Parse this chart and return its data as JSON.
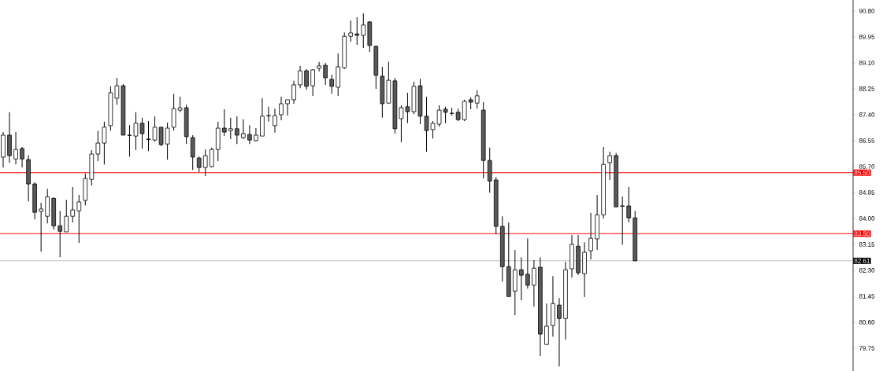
{
  "chart_data": {
    "type": "candlestick",
    "categories": [
      null,
      null,
      null,
      null,
      null,
      null,
      null,
      null,
      null,
      null,
      null,
      null,
      null,
      null,
      null,
      null,
      null,
      null,
      null,
      null,
      null,
      null,
      null,
      null,
      null,
      null,
      null,
      null,
      null,
      null,
      null,
      null,
      null,
      null,
      null,
      null,
      null,
      null,
      null,
      null,
      null,
      null,
      null,
      null,
      null,
      null,
      null,
      null,
      null,
      null,
      null,
      null,
      null,
      null,
      null,
      null,
      null,
      null,
      null,
      null,
      null,
      null,
      null,
      null,
      null,
      null,
      null,
      null,
      null,
      null,
      null,
      null,
      null,
      null,
      null,
      null,
      null,
      null,
      null,
      null,
      null,
      null,
      null,
      null,
      null,
      null,
      null,
      null,
      null,
      null,
      null,
      null,
      null,
      null,
      null,
      null,
      null,
      null,
      null,
      null,
      null,
      null,
      null,
      null,
      null,
      null,
      null,
      null,
      null,
      null,
      null,
      null,
      null,
      null,
      null,
      null,
      null,
      null,
      null,
      null,
      null,
      null,
      null,
      null,
      null,
      null,
      null,
      null,
      null,
      null,
      null,
      null,
      null,
      null,
      null
    ],
    "ohlc": [
      [
        86.01,
        86.83,
        85.67,
        86.73
      ],
      [
        86.73,
        87.48,
        85.83,
        86.06
      ],
      [
        85.95,
        86.83,
        85.77,
        86.26
      ],
      [
        86.29,
        86.34,
        85.67,
        85.95
      ],
      [
        85.93,
        86.08,
        84.56,
        85.13
      ],
      [
        85.13,
        85.18,
        83.97,
        84.2
      ],
      [
        84.23,
        84.51,
        82.91,
        84.31
      ],
      [
        84.07,
        84.97,
        83.84,
        84.71
      ],
      [
        84.66,
        84.69,
        83.63,
        83.76
      ],
      [
        83.76,
        84.25,
        82.73,
        83.58
      ],
      [
        83.56,
        84.61,
        83.56,
        84.07
      ],
      [
        84.07,
        85.03,
        83.87,
        84.28
      ],
      [
        84.25,
        84.77,
        83.2,
        84.54
      ],
      [
        84.59,
        85.47,
        84.43,
        85.31
      ],
      [
        85.28,
        86.24,
        85.08,
        86.11
      ],
      [
        86.11,
        86.88,
        85.88,
        86.47
      ],
      [
        86.47,
        87.17,
        85.77,
        86.99
      ],
      [
        87.04,
        88.33,
        86.88,
        88.12
      ],
      [
        87.94,
        88.61,
        87.73,
        88.35
      ],
      [
        88.35,
        88.4,
        86.73,
        86.73
      ],
      [
        86.73,
        87.06,
        86.03,
        86.72
      ],
      [
        86.7,
        87.48,
        86.24,
        87.12
      ],
      [
        87.12,
        87.3,
        86.29,
        86.78
      ],
      [
        86.6,
        87.19,
        86.21,
        86.59
      ],
      [
        86.57,
        87.35,
        86.52,
        86.99
      ],
      [
        86.99,
        86.99,
        86.37,
        86.42
      ],
      [
        86.44,
        87.14,
        85.93,
        86.96
      ],
      [
        86.99,
        88.09,
        86.88,
        87.6
      ],
      [
        87.55,
        87.99,
        87.48,
        87.63
      ],
      [
        87.63,
        87.73,
        86.44,
        86.68
      ],
      [
        86.65,
        86.73,
        85.59,
        86.01
      ],
      [
        85.98,
        86.03,
        85.52,
        85.67
      ],
      [
        85.67,
        86.26,
        85.39,
        86.06
      ],
      [
        85.7,
        86.32,
        85.67,
        86.26
      ],
      [
        86.26,
        87.17,
        85.88,
        86.96
      ],
      [
        86.96,
        87.58,
        86.7,
        86.83
      ],
      [
        86.88,
        87.3,
        86.6,
        86.94
      ],
      [
        86.94,
        87.35,
        86.44,
        86.73
      ],
      [
        86.65,
        87.25,
        86.6,
        86.78
      ],
      [
        86.75,
        87.06,
        86.44,
        86.57
      ],
      [
        86.55,
        86.96,
        86.52,
        86.73
      ],
      [
        86.7,
        87.94,
        86.7,
        87.35
      ],
      [
        87.37,
        87.66,
        87.17,
        87.36
      ],
      [
        87.04,
        87.6,
        86.81,
        87.37
      ],
      [
        87.4,
        87.99,
        87.22,
        87.76
      ],
      [
        87.76,
        87.89,
        87.37,
        87.89
      ],
      [
        87.89,
        88.51,
        87.76,
        88.38
      ],
      [
        88.38,
        89.0,
        88.27,
        88.84
      ],
      [
        88.84,
        88.89,
        88.22,
        88.33
      ],
      [
        88.35,
        88.89,
        88.02,
        88.87
      ],
      [
        88.92,
        89.13,
        88.82,
        89.0
      ],
      [
        89.02,
        89.1,
        88.38,
        88.61
      ],
      [
        88.56,
        88.71,
        88.09,
        88.33
      ],
      [
        88.3,
        89.41,
        88.02,
        88.97
      ],
      [
        88.94,
        90.1,
        88.89,
        89.97
      ],
      [
        89.97,
        90.49,
        89.79,
        90.08
      ],
      [
        90.05,
        90.59,
        89.69,
        90.0
      ],
      [
        90.0,
        90.72,
        89.59,
        90.34
      ],
      [
        90.44,
        90.47,
        89.46,
        89.67
      ],
      [
        89.64,
        89.67,
        88.25,
        88.69
      ],
      [
        88.66,
        88.97,
        87.3,
        87.76
      ],
      [
        87.78,
        89.13,
        87.78,
        88.53
      ],
      [
        88.51,
        88.61,
        86.78,
        86.94
      ],
      [
        87.27,
        87.71,
        86.5,
        87.63
      ],
      [
        87.66,
        88.12,
        87.12,
        87.5
      ],
      [
        87.5,
        88.48,
        87.42,
        88.33
      ],
      [
        88.35,
        88.58,
        87.09,
        87.35
      ],
      [
        87.35,
        87.99,
        86.19,
        86.88
      ],
      [
        86.91,
        87.19,
        86.62,
        87.12
      ],
      [
        87.09,
        87.71,
        87.01,
        87.55
      ],
      [
        87.58,
        87.66,
        87.12,
        87.48
      ],
      [
        87.45,
        87.63,
        87.37,
        87.44
      ],
      [
        87.48,
        87.6,
        87.19,
        87.24
      ],
      [
        87.24,
        87.89,
        87.19,
        87.84
      ],
      [
        87.89,
        87.97,
        87.58,
        87.81
      ],
      [
        87.78,
        88.2,
        87.6,
        88.02
      ],
      [
        87.55,
        87.81,
        85.31,
        85.9
      ],
      [
        85.9,
        86.32,
        84.85,
        85.23
      ],
      [
        85.26,
        85.36,
        83.48,
        83.74
      ],
      [
        83.74,
        84.07,
        81.93,
        82.42
      ],
      [
        82.42,
        83.87,
        81.44,
        81.44
      ],
      [
        81.62,
        82.97,
        80.83,
        82.32
      ],
      [
        82.32,
        82.73,
        81.32,
        82.14
      ],
      [
        82.17,
        83.35,
        81.7,
        81.81
      ],
      [
        81.81,
        82.63,
        81.11,
        82.37
      ],
      [
        82.4,
        82.73,
        79.49,
        80.21
      ],
      [
        79.87,
        81.21,
        79.87,
        80.47
      ],
      [
        80.49,
        82.11,
        80.13,
        81.21
      ],
      [
        81.16,
        81.39,
        79.15,
        80.72
      ],
      [
        80.72,
        82.58,
        80.03,
        82.32
      ],
      [
        82.35,
        83.46,
        82.06,
        83.15
      ],
      [
        83.09,
        83.46,
        82.14,
        82.22
      ],
      [
        82.19,
        83.22,
        81.42,
        82.89
      ],
      [
        82.94,
        84.18,
        82.66,
        83.35
      ],
      [
        83.33,
        84.77,
        82.97,
        84.12
      ],
      [
        84.12,
        86.34,
        84.0,
        85.77
      ],
      [
        85.83,
        86.19,
        85.26,
        86.06
      ],
      [
        86.06,
        86.14,
        84.38,
        84.38
      ],
      [
        84.41,
        84.72,
        83.14,
        84.4
      ],
      [
        84.41,
        85.03,
        83.87,
        84.02
      ],
      [
        84.02,
        84.25,
        82.61,
        82.61
      ],
      null,
      null,
      null,
      null,
      null,
      null,
      null,
      null,
      null,
      null,
      null,
      null,
      null,
      null,
      null,
      null,
      null,
      null,
      null,
      null,
      null,
      null,
      null,
      null,
      null,
      null,
      null,
      null,
      null,
      null,
      null,
      null,
      null,
      null
    ],
    "ylim": [
      79.0,
      91.16
    ],
    "yticks": [
      {
        "value": 90.8,
        "label": "90.80"
      },
      {
        "value": 89.95,
        "label": "89.95"
      },
      {
        "value": 89.1,
        "label": "89.10"
      },
      {
        "value": 88.25,
        "label": "88.25"
      },
      {
        "value": 87.4,
        "label": "87.40"
      },
      {
        "value": 86.55,
        "label": "86.55"
      },
      {
        "value": 85.7,
        "label": "85.70"
      },
      {
        "value": 84.85,
        "label": "84.85"
      },
      {
        "value": 84.0,
        "label": "84.00"
      },
      {
        "value": 83.15,
        "label": "83.15"
      },
      {
        "value": 82.3,
        "label": "82.30"
      },
      {
        "value": 81.45,
        "label": "81.45"
      },
      {
        "value": 80.6,
        "label": "80.60"
      },
      {
        "value": 79.75,
        "label": "79.75"
      }
    ],
    "tick_labels": "y",
    "ref_lines": [
      {
        "axis": "y",
        "value": 85.5,
        "label": "85.50",
        "color": "#ff0000"
      },
      {
        "axis": "y",
        "value": 83.5,
        "label": "83.50",
        "color": "#ff0000"
      },
      {
        "axis": "y",
        "value": 82.61,
        "label": "82.61",
        "color": "#c0c0c0"
      }
    ]
  }
}
